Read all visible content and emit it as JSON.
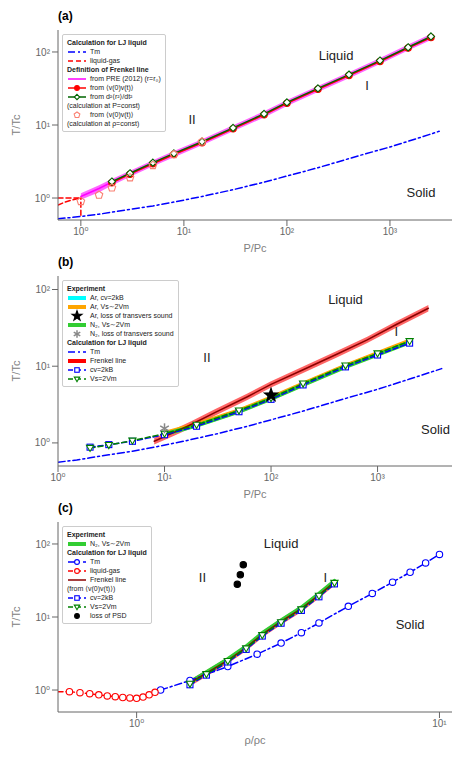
{
  "chart_data": [
    {
      "type": "line",
      "title": "(a)",
      "xlabel": "P/Pc",
      "ylabel": "T/Tc",
      "log": true,
      "grid": false,
      "legend": "upper left",
      "xlim": [
        0.6,
        4000
      ],
      "ylim": [
        0.5,
        200
      ],
      "xticks": [
        {
          "value": 1,
          "label": "10⁰"
        },
        {
          "value": 10,
          "label": "10¹"
        },
        {
          "value": 100,
          "label": "10²"
        },
        {
          "value": 1000,
          "label": "10³"
        }
      ],
      "yticks": [
        {
          "value": 1,
          "label": "10⁰"
        },
        {
          "value": 10,
          "label": "10¹"
        },
        {
          "value": 100,
          "label": "10²"
        }
      ],
      "annotations": [
        {
          "text": "I",
          "x": 600,
          "y": 35
        },
        {
          "text": "II",
          "x": 12,
          "y": 12
        },
        {
          "text": "Liquid",
          "x": 300,
          "y": 90
        },
        {
          "text": "Solid",
          "x": 2000,
          "y": 1.2
        },
        {
          "text": "Calculation for LJ liquid"
        },
        {
          "text": "Definition of Frenkel line"
        },
        {
          "text": "(calculation at P=const)"
        },
        {
          "text": "(calculation at ρ=const)"
        }
      ],
      "series": [
        {
          "name": "Tm",
          "type": "line",
          "color": "blue",
          "line_style": "dashdot",
          "x": [
            0.6,
            0.8,
            1.0,
            1.5,
            2.0,
            3.0,
            5.0,
            8.0,
            15,
            30,
            60,
            100,
            200,
            500,
            1000,
            2000,
            3000
          ],
          "values": [
            0.52,
            0.54,
            0.56,
            0.6,
            0.64,
            0.7,
            0.78,
            0.88,
            1.05,
            1.3,
            1.65,
            2.0,
            2.6,
            3.8,
            5.0,
            6.8,
            8.2
          ]
        },
        {
          "name": "liquid-gas",
          "type": "line",
          "color": "red",
          "line_style": "dashed",
          "x": [
            0.6,
            1.0
          ],
          "values": [
            1.0,
            1.0
          ]
        },
        {
          "type": "line",
          "color": "red",
          "line_style": "dashed",
          "x": [
            1.0,
            1.0
          ],
          "values": [
            0.58,
            1.0
          ]
        },
        {
          "type": "line",
          "color": "red",
          "line_style": "dashed",
          "x": [
            0.6,
            0.7,
            0.8,
            0.9,
            1.0
          ],
          "values": [
            0.8,
            0.88,
            0.93,
            0.97,
            1.0
          ]
        },
        {
          "type": "band",
          "color": "magenta",
          "x": [
            1.0,
            1.5,
            2.0,
            3.0,
            5.0,
            8.0,
            15,
            30,
            60,
            100,
            200,
            400,
            800,
            1500,
            2500
          ],
          "low": [
            0.95,
            1.2,
            1.48,
            1.95,
            2.72,
            3.62,
            5.26,
            8.18,
            12.7,
            18.2,
            28.2,
            43.7,
            68.3,
            104.8,
            145.6
          ],
          "high": [
            1.16,
            1.5,
            1.82,
            2.37,
            3.3,
            4.4,
            6.38,
            9.9,
            15.4,
            22.0,
            34.1,
            52.8,
            82.5,
            126.5,
            176.0
          ]
        },
        {
          "name": "from PRE (2012) (r=r₀)",
          "type": "line",
          "color": "magenta",
          "line_style": "solid",
          "x": [
            1.0,
            1.5,
            2.0,
            3.0,
            5.0,
            8.0,
            15,
            30,
            60,
            100,
            200,
            400,
            800,
            1500,
            2500
          ],
          "values": [
            1.05,
            1.35,
            1.65,
            2.15,
            3.0,
            4.0,
            5.8,
            9.0,
            14,
            20,
            31,
            48,
            75,
            115,
            160
          ]
        },
        {
          "type": "hatched_band",
          "color": "#aaaaaa",
          "x": [
            2.0,
            3.0,
            5.0,
            8.0,
            15,
            30,
            60,
            100,
            200,
            400,
            800,
            1500,
            2500
          ],
          "low": [
            1.62,
            2.12,
            2.95,
            3.95,
            5.72,
            8.85,
            13.8,
            19.8,
            30.8,
            47.6,
            74.0,
            113,
            158
          ],
          "high": [
            1.68,
            2.18,
            3.05,
            4.08,
            5.9,
            9.13,
            14.2,
            20.4,
            31.7,
            49.0,
            76.3,
            116,
            163
          ]
        },
        {
          "name": "from ⟨v(0)v(t)⟩",
          "type": "line",
          "color": "red",
          "line_style": "solid",
          "marker": "filled_circle",
          "x": [
            2.0,
            3.0,
            5.0,
            8.0,
            15,
            30,
            60,
            100,
            200,
            400,
            800,
            1500,
            2500
          ],
          "values": [
            1.62,
            2.12,
            2.95,
            3.95,
            5.72,
            8.85,
            13.8,
            19.8,
            30.8,
            47.6,
            74.0,
            113,
            158
          ]
        },
        {
          "name": "from d²⟨r²⟩/dt²",
          "type": "line",
          "color": "darkgreen",
          "line_style": "solid",
          "marker": "open_diamond",
          "x": [
            2.0,
            3.0,
            5.0,
            8.0,
            15,
            30,
            60,
            100,
            200,
            400,
            800,
            1500,
            2500
          ],
          "values": [
            1.68,
            2.18,
            3.05,
            4.08,
            5.9,
            9.13,
            14.2,
            20.4,
            31.7,
            49.0,
            76.3,
            116,
            163
          ]
        },
        {
          "name": "from ⟨v(0)v(t)⟩",
          "type": "scatter",
          "color": "salmon",
          "marker": "open_pentagon",
          "x": [
            1.0,
            1.5,
            2.0,
            3.0,
            5.0,
            8.0,
            15
          ],
          "values": [
            0.9,
            1.1,
            1.38,
            1.9,
            2.8,
            3.95,
            5.9
          ]
        }
      ]
    },
    {
      "type": "line",
      "title": "(b)",
      "xlabel": "P/Pc",
      "ylabel": "T/Tc",
      "log": true,
      "grid": false,
      "legend": "upper left",
      "xlim": [
        1,
        5000
      ],
      "ylim": [
        0.5,
        150
      ],
      "xticks": [
        {
          "value": 1,
          "label": "10⁰"
        },
        {
          "value": 10,
          "label": "10¹"
        },
        {
          "value": 100,
          "label": "10²"
        },
        {
          "value": 1000,
          "label": "10³"
        }
      ],
      "yticks": [
        {
          "value": 1,
          "label": "10⁰"
        },
        {
          "value": 10,
          "label": "10¹"
        },
        {
          "value": 100,
          "label": "10²"
        }
      ],
      "annotations": [
        {
          "text": "I",
          "x": 1500,
          "y": 28
        },
        {
          "text": "II",
          "x": 25,
          "y": 13
        },
        {
          "text": "Liquid",
          "x": 500,
          "y": 75
        },
        {
          "text": "Solid",
          "x": 3500,
          "y": 1.5
        },
        {
          "text": "Experiment"
        },
        {
          "text": "Calculation for LJ liquid"
        }
      ],
      "series": [
        {
          "name": "Ar, cv=2kB",
          "type": "line",
          "color": "cyan",
          "line_style": "thick",
          "x": [
            10,
            20,
            50,
            100,
            200,
            500,
            1000,
            2000
          ],
          "values": [
            1.3,
            1.7,
            2.6,
            3.8,
            5.8,
            10,
            14.5,
            21
          ]
        },
        {
          "name": "Ar, Vs∼2Vm",
          "type": "line",
          "color": "orange",
          "line_style": "thick",
          "x": [
            10,
            20,
            50,
            100,
            200,
            500,
            1000,
            2000
          ],
          "values": [
            1.35,
            1.75,
            2.65,
            3.9,
            5.95,
            10.2,
            14.8,
            21.5
          ]
        },
        {
          "name": "Ar, loss of transvers sound",
          "type": "scatter",
          "color": "black",
          "marker": "filled_star",
          "x": [
            100
          ],
          "values": [
            4.2
          ]
        },
        {
          "name": "N₂, Vs∼2Vm",
          "type": "line",
          "color": "limegreen",
          "line_style": "thick",
          "x": [
            10,
            20,
            50,
            100,
            200,
            500,
            1000,
            2000
          ],
          "values": [
            1.3,
            1.68,
            2.55,
            3.75,
            5.7,
            9.8,
            14.2,
            20.5
          ]
        },
        {
          "name": "N₂, loss of transvers sound",
          "type": "scatter",
          "color": "#888888",
          "marker": "asterisk",
          "x": [
            10
          ],
          "values": [
            1.55
          ]
        },
        {
          "name": "Tm",
          "type": "line",
          "color": "blue",
          "line_style": "dashdot",
          "x": [
            1.0,
            1.5,
            2.0,
            3.0,
            5.0,
            8.0,
            15,
            30,
            60,
            100,
            200,
            500,
            1000,
            2000,
            4000
          ],
          "values": [
            0.56,
            0.6,
            0.64,
            0.7,
            0.78,
            0.88,
            1.05,
            1.3,
            1.65,
            2.0,
            2.6,
            3.8,
            5.0,
            6.8,
            9.3
          ]
        },
        {
          "name": "Frenkel line",
          "type": "band",
          "color": "red",
          "x": [
            8,
            12,
            18,
            30,
            60,
            100,
            200,
            400,
            800,
            1500,
            3000
          ],
          "low": [
            0.95,
            1.22,
            1.58,
            2.27,
            3.63,
            5.27,
            8.18,
            12.7,
            20.0,
            31.8,
            51.8
          ],
          "high": [
            1.16,
            1.49,
            1.93,
            2.76,
            4.41,
            6.39,
            9.91,
            15.4,
            24.2,
            38.6,
            62.9
          ]
        },
        {
          "type": "line",
          "color": "darkred",
          "line_style": "solid",
          "x": [
            8,
            12,
            18,
            30,
            60,
            100,
            200,
            400,
            800,
            1500,
            3000
          ],
          "values": [
            1.05,
            1.35,
            1.75,
            2.5,
            4.0,
            5.8,
            9.0,
            14,
            22,
            35,
            57
          ]
        },
        {
          "name": "cv=2kB",
          "type": "line",
          "color": "blue",
          "line_style": "dashed",
          "marker": "open_square",
          "x": [
            2.0,
            3.0,
            5.0,
            10,
            20,
            50,
            100,
            200,
            500,
            1000,
            2000
          ],
          "values": [
            0.88,
            0.95,
            1.05,
            1.28,
            1.65,
            2.55,
            3.7,
            5.7,
            9.8,
            14,
            20
          ]
        },
        {
          "name": "Vs=2Vm",
          "type": "line",
          "color": "green",
          "line_style": "dashed",
          "marker": "open_triangle_down",
          "x": [
            2.0,
            3.0,
            5.0,
            10,
            20,
            50,
            100,
            200,
            500,
            1000,
            2000
          ],
          "values": [
            0.86,
            0.94,
            1.07,
            1.32,
            1.72,
            2.65,
            3.85,
            5.95,
            10.2,
            14.7,
            21.2
          ]
        }
      ]
    },
    {
      "type": "line",
      "title": "(c)",
      "xlabel": "ρ/ρc",
      "ylabel": "T/Tc",
      "log": true,
      "grid": false,
      "legend": "upper left",
      "xlim": [
        0.55,
        11
      ],
      "ylim": [
        0.5,
        200
      ],
      "xticks": [
        {
          "value": 1,
          "label": "10⁰"
        },
        {
          "value": 10,
          "label": "10¹"
        }
      ],
      "yticks": [
        {
          "value": 1,
          "label": "10⁰"
        },
        {
          "value": 10,
          "label": "10¹"
        },
        {
          "value": 100,
          "label": "10²"
        }
      ],
      "annotations": [
        {
          "text": "I",
          "x": 4.2,
          "y": 35
        },
        {
          "text": "II",
          "x": 1.65,
          "y": 35
        },
        {
          "text": "Liquid",
          "x": 3.0,
          "y": 100
        },
        {
          "text": "Solid",
          "x": 8.0,
          "y": 8
        },
        {
          "text": "Experiment"
        },
        {
          "text": "Calculation for LJ liquid"
        },
        {
          "text": "(from ⟨v(0)v(t)⟩)"
        }
      ],
      "series": [
        {
          "name": "N₂, Vs∼2Vm",
          "type": "line",
          "color": "limegreen",
          "line_style": "thick",
          "x": [
            1.5,
            1.7,
            2.0,
            2.3,
            2.6,
            3.0,
            3.5,
            4.0,
            4.5
          ],
          "values": [
            1.28,
            1.75,
            2.65,
            3.95,
            6.0,
            9.0,
            13.5,
            20.8,
            31.2
          ]
        },
        {
          "name": "Tm",
          "type": "line",
          "color": "blue",
          "line_style": "dashdot",
          "marker": "open_circle",
          "x": [
            1.2,
            1.5,
            2.0,
            2.5,
            3.0,
            3.5,
            4.0,
            5.0,
            6.0,
            7.0,
            8.0,
            9.0,
            10.0
          ],
          "values": [
            1.0,
            1.35,
            2.1,
            3.1,
            4.4,
            6.1,
            8.3,
            14,
            21,
            30,
            41,
            55,
            72
          ]
        },
        {
          "name": "liquid-gas",
          "type": "line",
          "color": "red",
          "line_style": "dashed",
          "marker": "open_circle",
          "x": [
            0.6,
            0.65,
            0.7,
            0.75,
            0.8,
            0.85,
            0.9,
            0.95,
            1.0,
            1.05,
            1.1,
            1.15
          ],
          "values": [
            0.95,
            0.92,
            0.89,
            0.86,
            0.83,
            0.81,
            0.79,
            0.78,
            0.77,
            0.8,
            0.86,
            0.93
          ]
        },
        {
          "type": "line",
          "color": "red",
          "line_style": "dashed",
          "x": [
            0.55,
            0.6
          ],
          "values": [
            0.95,
            0.95
          ]
        },
        {
          "type": "band",
          "color": "red",
          "x": [
            1.5,
            1.7,
            2.0,
            2.3,
            2.6,
            3.0,
            3.5,
            4.0,
            4.5
          ],
          "low": [
            1.13,
            1.53,
            2.3,
            3.42,
            5.22,
            7.83,
            11.7,
            18.0,
            27.0
          ],
          "high": [
            1.38,
            1.87,
            2.81,
            4.18,
            6.38,
            9.57,
            14.3,
            22.0,
            33.0
          ]
        },
        {
          "name": "Frenkel line",
          "type": "line",
          "color": "darkred",
          "line_style": "solid",
          "x": [
            1.5,
            1.7,
            2.0,
            2.3,
            2.6,
            3.0,
            3.5,
            4.0,
            4.5
          ],
          "values": [
            1.25,
            1.7,
            2.55,
            3.8,
            5.8,
            8.7,
            13,
            20,
            30
          ]
        },
        {
          "name": "cv=2kB",
          "type": "line",
          "color": "blue",
          "line_style": "dashed",
          "marker": "open_square",
          "x": [
            1.5,
            1.7,
            2.0,
            2.3,
            2.6,
            3.0,
            3.5,
            4.0,
            4.5
          ],
          "values": [
            1.18,
            1.6,
            2.42,
            3.6,
            5.48,
            8.22,
            12.3,
            18.9,
            28.4
          ]
        },
        {
          "name": "Vs=2Vm",
          "type": "line",
          "color": "green",
          "line_style": "dashed",
          "marker": "open_triangle_down",
          "x": [
            1.5,
            1.7,
            2.0,
            2.3,
            2.6,
            3.0,
            3.5,
            4.0,
            4.5
          ],
          "values": [
            1.22,
            1.65,
            2.5,
            3.72,
            5.65,
            8.48,
            12.7,
            19.5,
            29.3
          ]
        },
        {
          "name": "loss of PSD",
          "type": "scatter",
          "color": "black",
          "marker": "filled_circle",
          "x": [
            2.15,
            2.2,
            2.25
          ],
          "values": [
            28,
            38,
            52
          ]
        }
      ]
    }
  ]
}
